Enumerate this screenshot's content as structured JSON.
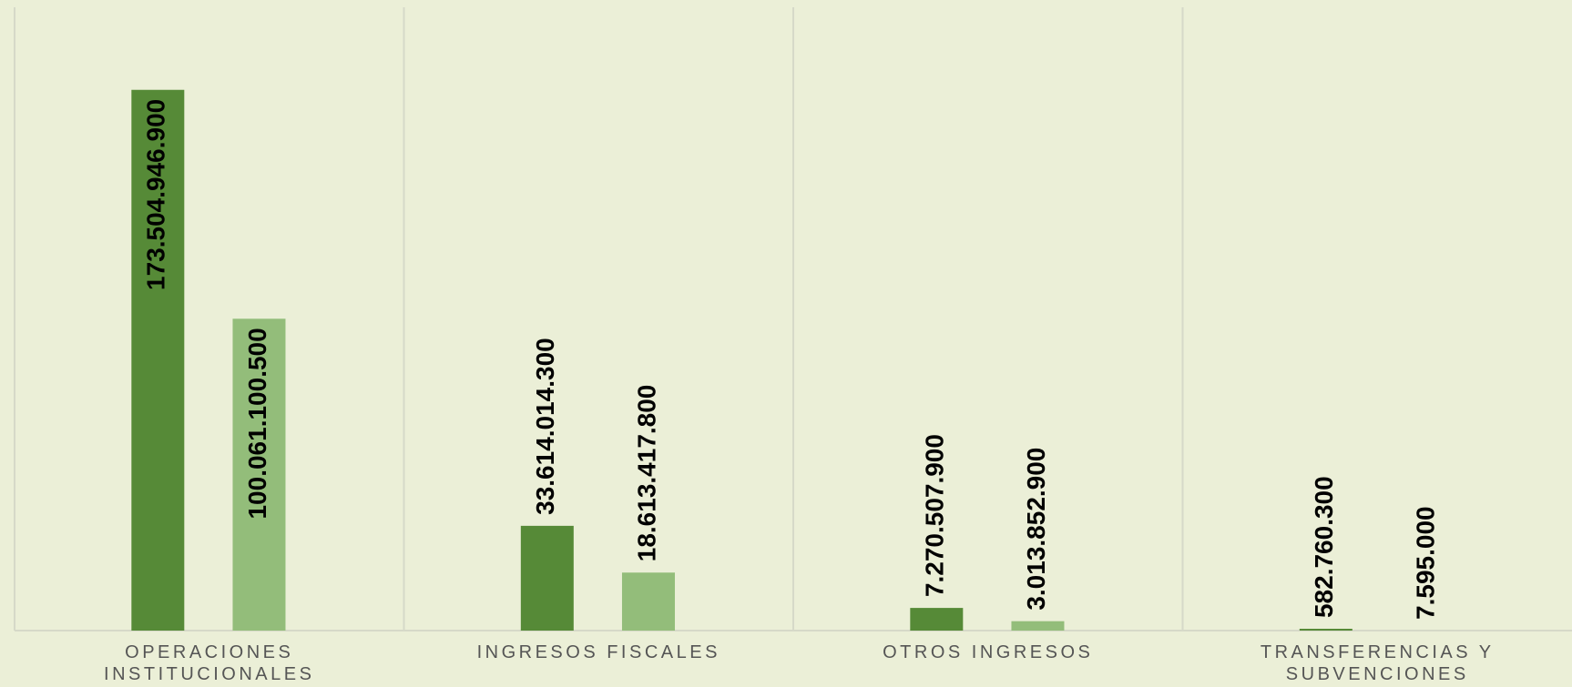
{
  "chart_data": {
    "type": "bar",
    "categories": [
      "OPERACIONES INSTITUCIONALES",
      "INGRESOS FISCALES",
      "OTROS INGRESOS",
      "TRANSFERENCIAS Y SUBVENCIONES"
    ],
    "series": [
      {
        "color": "#568a37",
        "values": [
          173504946900,
          33614014300,
          7270507900,
          582760300
        ],
        "value_labels": [
          "173.504.946.900",
          "33.614.014.300",
          "7.270.507.900",
          "582.760.300"
        ]
      },
      {
        "color": "#93bd7a",
        "values": [
          100061100500,
          18613417800,
          3013852900,
          7595000
        ],
        "value_labels": [
          "100.061.100.500",
          "18.613.417.800",
          "3.013.852.900",
          "7.595.000"
        ]
      }
    ],
    "ylim": [
      0,
      200000000000
    ]
  }
}
